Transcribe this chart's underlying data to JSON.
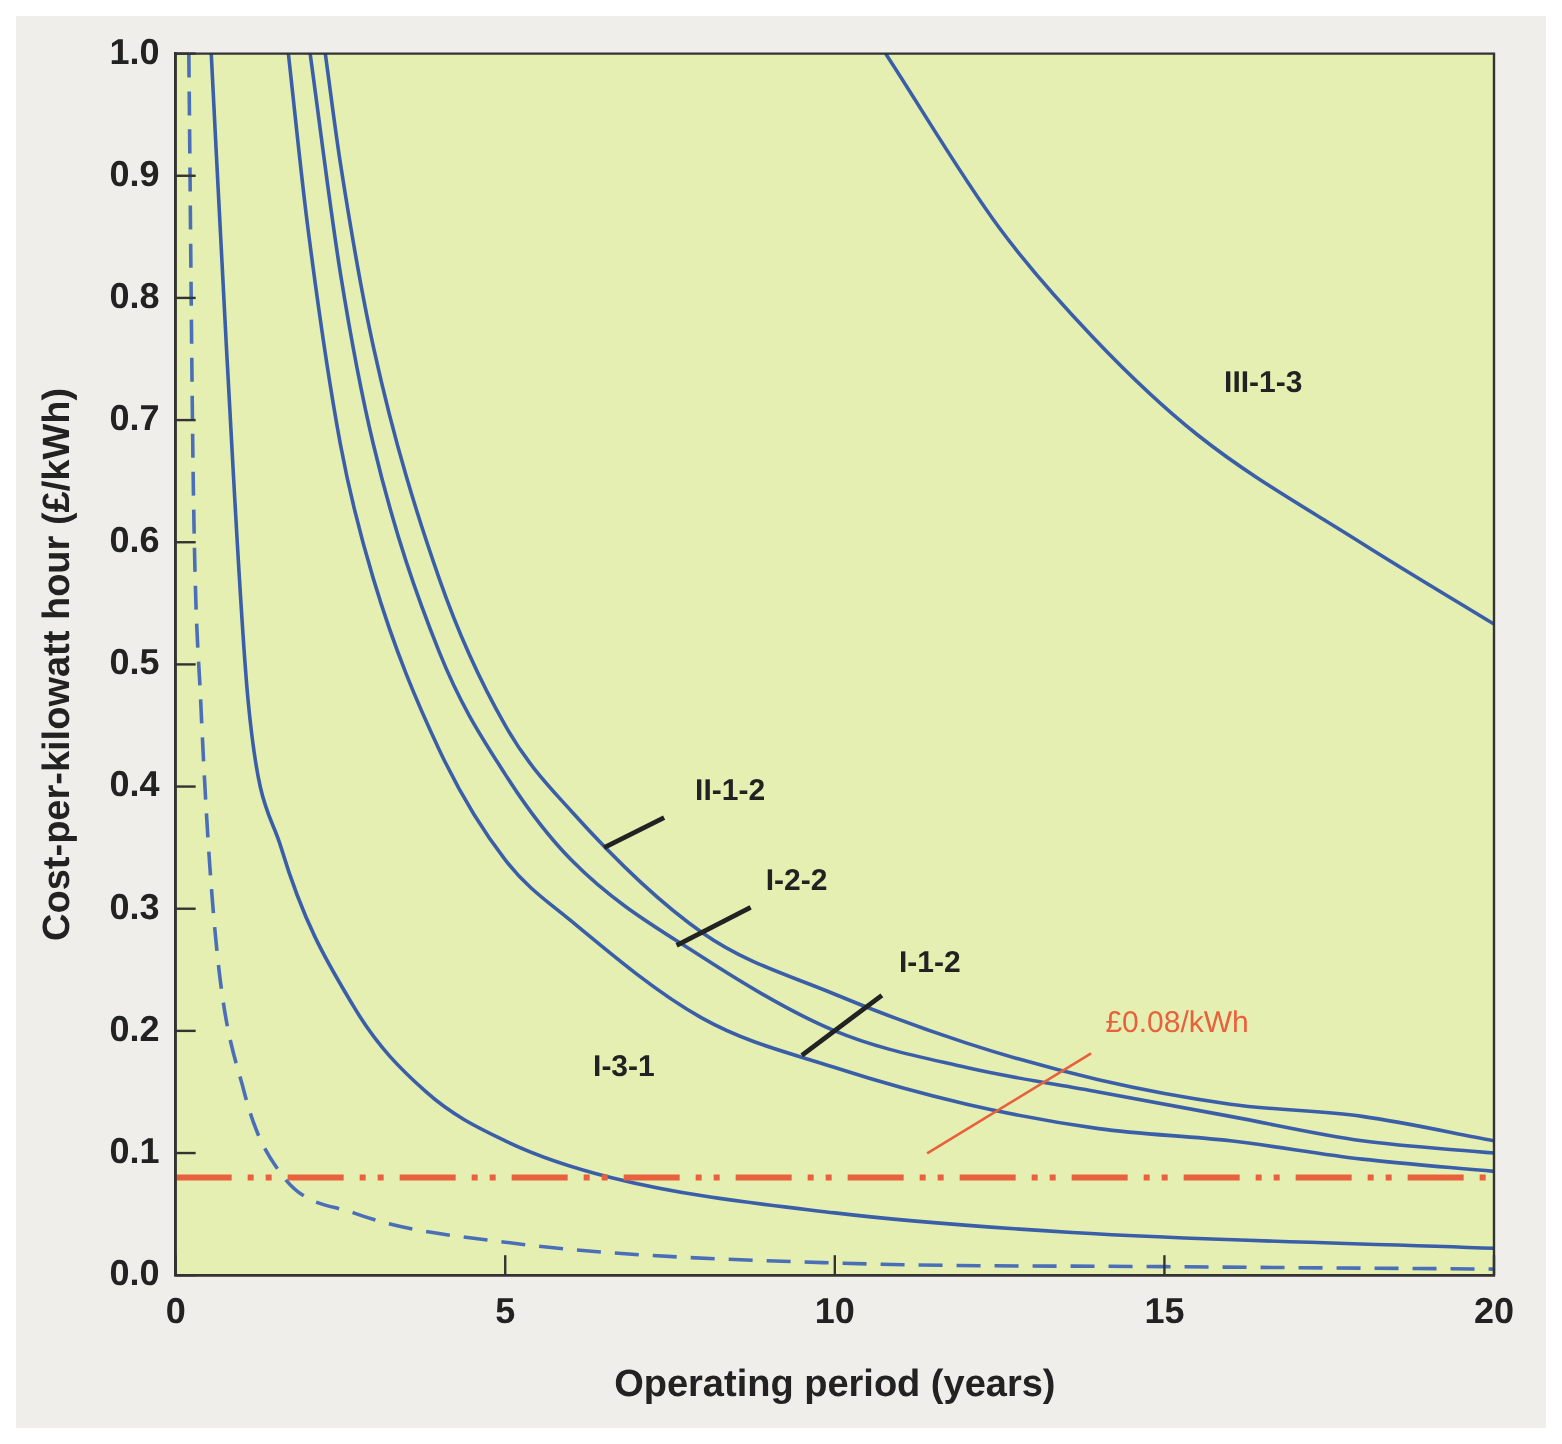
{
  "chart_data": {
    "type": "line",
    "xlabel": "Operating period (years)",
    "ylabel": "Cost-per-kilowatt hour (£/kWh)",
    "xlim": [
      0,
      20
    ],
    "xticks": [
      0,
      5,
      10,
      15,
      20
    ],
    "ylim": [
      0,
      1
    ],
    "yticks": [
      {
        "value": 0,
        "label": "0.0"
      },
      0.1,
      0.2,
      0.3,
      0.4,
      0.5,
      0.6,
      0.7,
      0.8,
      0.9,
      {
        "value": 1,
        "label": "1.0"
      }
    ],
    "grid": false,
    "marker": "none",
    "line_style": "solid",
    "series": [
      {
        "color": "#4a6fb8",
        "line_style": "dashed",
        "x": [
          0.2,
          0.27,
          0.38,
          0.6,
          1.04,
          1.6,
          2.7,
          5,
          10,
          15,
          20
        ],
        "values": [
          1.0,
          0.64,
          0.47,
          0.28,
          0.15,
          0.083,
          0.051,
          0.027,
          0.01,
          0.007,
          0.005
        ]
      },
      {
        "color": "#3a5fa8",
        "x": [
          0.54,
          0.77,
          1.1,
          1.6,
          2.7,
          3.8,
          5,
          6.6,
          10,
          13.6,
          20
        ],
        "values": [
          1.0,
          0.76,
          0.47,
          0.35,
          0.22,
          0.15,
          0.11,
          0.08,
          0.051,
          0.035,
          0.022
        ]
      },
      {
        "color": "#3a5fa8",
        "x": [
          1.71,
          2,
          2.5,
          3,
          4,
          5,
          6,
          8,
          10,
          12,
          14,
          16,
          18,
          20
        ],
        "values": [
          1.0,
          0.86,
          0.68,
          0.57,
          0.43,
          0.34,
          0.29,
          0.21,
          0.17,
          0.14,
          0.12,
          0.11,
          0.095,
          0.085
        ]
      },
      {
        "color": "#3a5fa8",
        "x": [
          2.04,
          2.5,
          3,
          4,
          5,
          6,
          8,
          10,
          12,
          14,
          16,
          18,
          20
        ],
        "values": [
          1.0,
          0.82,
          0.68,
          0.51,
          0.41,
          0.34,
          0.26,
          0.2,
          0.17,
          0.15,
          0.13,
          0.11,
          0.1
        ]
      },
      {
        "color": "#3a5fa8",
        "x": [
          2.27,
          2.5,
          3,
          4,
          5,
          6,
          8,
          10,
          12,
          14,
          16,
          18,
          20
        ],
        "values": [
          1.0,
          0.91,
          0.76,
          0.57,
          0.45,
          0.38,
          0.28,
          0.23,
          0.19,
          0.16,
          0.14,
          0.13,
          0.11
        ]
      },
      {
        "color": "#3a5fa8",
        "x": [
          10.77,
          12.5,
          13.93,
          15.5,
          18,
          20
        ],
        "values": [
          1.0,
          0.857,
          0.767,
          0.688,
          0.599,
          0.533
        ]
      }
    ],
    "ref_lines": [
      {
        "axis": "y",
        "value": 0.08,
        "label": "£0.08/kWh",
        "color": "#e8603c",
        "line_style": "dashed"
      }
    ],
    "annotations": [
      {
        "text": "II-1-2",
        "x": 6.5,
        "y": 0.35
      },
      {
        "text": "I-2-2",
        "x": 7.6,
        "y": 0.27
      },
      {
        "text": "I-1-2",
        "x": 9.5,
        "y": 0.18
      },
      "I-3-1",
      "III-1-3"
    ]
  }
}
